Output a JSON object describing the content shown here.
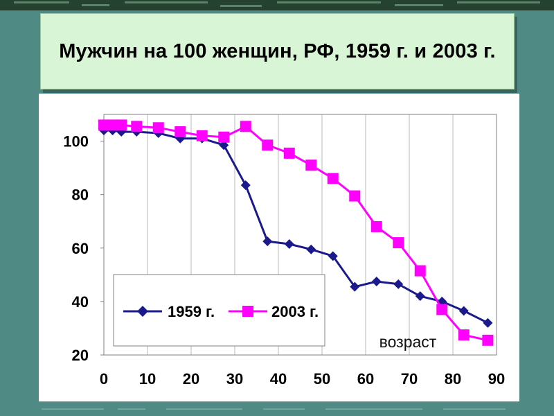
{
  "title": "Мужчин на 100 женщин, РФ, 1959 г. и 2003 г.",
  "chart_data": {
    "type": "line",
    "title": "Мужчин на 100 женщин, РФ, 1959 г. и 2003 г.",
    "xlabel": "",
    "ylabel": "",
    "annotation": "возраст",
    "xlim": [
      0,
      90
    ],
    "ylim": [
      20,
      110
    ],
    "x_ticks": [
      0,
      10,
      20,
      30,
      40,
      50,
      60,
      70,
      80,
      90
    ],
    "y_ticks": [
      20,
      40,
      60,
      80,
      100
    ],
    "grid": "vertical",
    "legend_position": "bottom-left",
    "series": [
      {
        "name": "1959 г.",
        "color": "#1a1a8c",
        "marker": "diamond",
        "x": [
          0,
          2,
          4,
          7.5,
          12.5,
          17.5,
          22.5,
          27.5,
          32.5,
          37.5,
          42.5,
          47.5,
          52.5,
          57.5,
          62.5,
          67.5,
          72.5,
          77.5,
          82.5,
          88
        ],
        "y": [
          104,
          104,
          103.5,
          103.5,
          103,
          101,
          101,
          98.5,
          83.5,
          62.5,
          61.5,
          59.5,
          57,
          45.5,
          47.5,
          46.5,
          42,
          40,
          36.5,
          32
        ]
      },
      {
        "name": "2003 г.",
        "color": "#ff00ff",
        "marker": "square",
        "x": [
          0,
          2,
          4,
          7.5,
          12.5,
          17.5,
          22.5,
          27.5,
          32.5,
          37.5,
          42.5,
          47.5,
          52.5,
          57.5,
          62.5,
          67.5,
          72.5,
          77.5,
          82.5,
          88
        ],
        "y": [
          106,
          106,
          106,
          105.5,
          105,
          103.5,
          102,
          101.5,
          105.5,
          98.5,
          95.5,
          91,
          86,
          79.5,
          68,
          62,
          51.5,
          37,
          27.5,
          25.5
        ]
      }
    ]
  }
}
